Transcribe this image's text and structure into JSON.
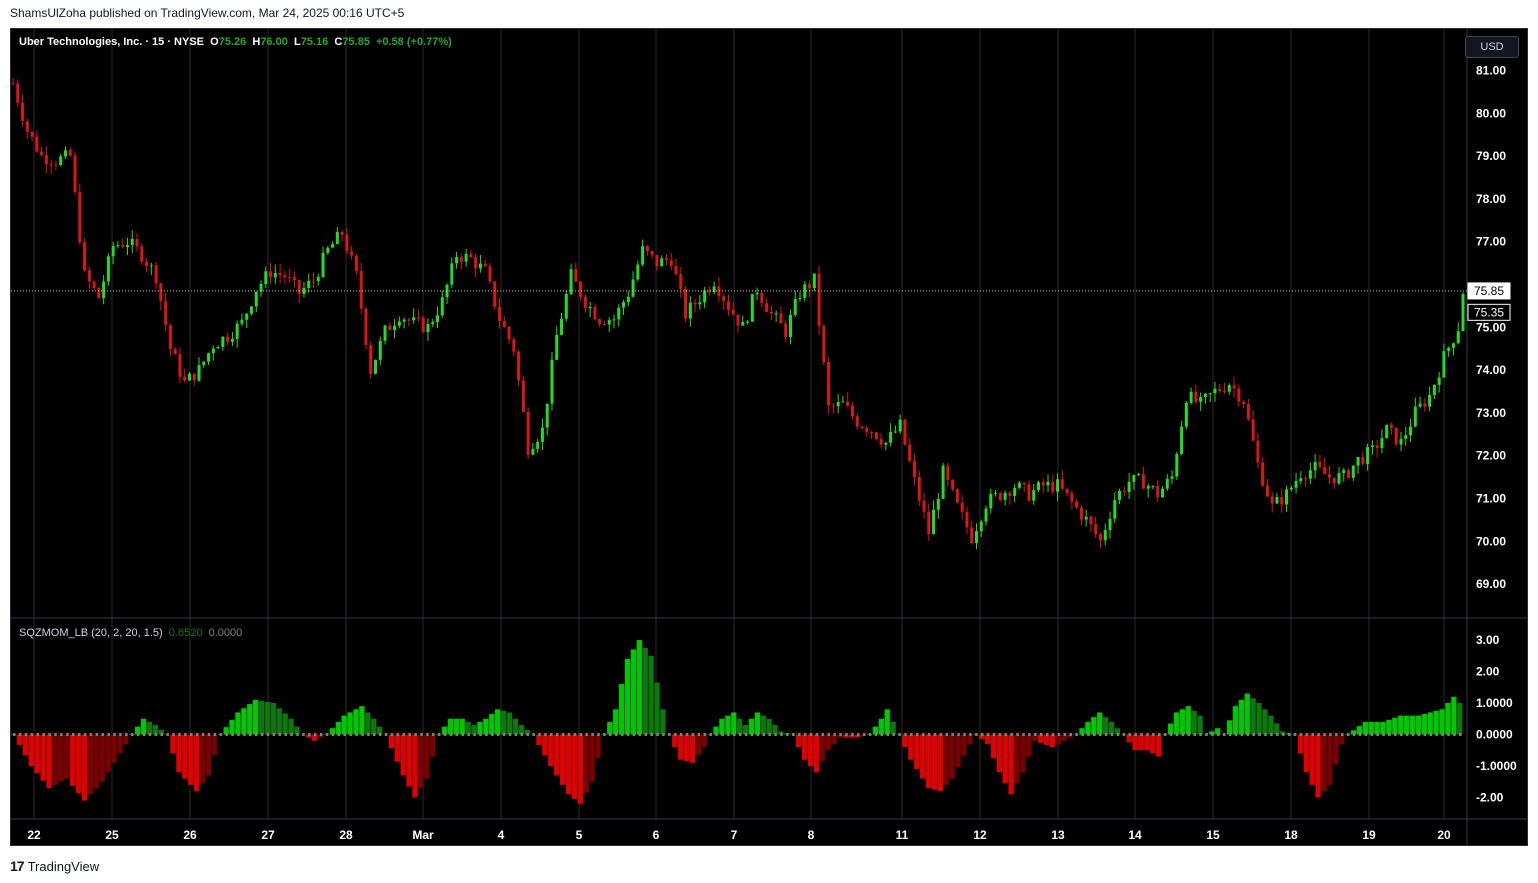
{
  "header": {
    "publisher": "ShamsUlZoha published on TradingView.com, Mar 24, 2025 00:16 UTC+5"
  },
  "footer": {
    "brand": "TradingView",
    "logo_text": "17"
  },
  "currency_button": "USD",
  "legend": {
    "symbol": "Uber Technologies, Inc. · 15 · NYSE",
    "o_label": "O",
    "o_value": "75.26",
    "h_label": "H",
    "h_value": "76.00",
    "l_label": "L",
    "l_value": "75.16",
    "c_label": "C",
    "c_value": "75.85",
    "change": "+0.58 (+0.77%)"
  },
  "indicator": {
    "name": "SQZMOM_LB (20, 2, 20, 1.5)",
    "value1": "0.6520",
    "value2": "0.0000"
  },
  "colors": {
    "up": "#22dd22",
    "down": "#dd1515",
    "grid": "#2b2b2b",
    "axis_text": "#ffffff",
    "mom_up_strong": "#00c800",
    "mom_up_weak": "#0b7a0b",
    "mom_dn_strong": "#e00000",
    "mom_dn_weak": "#7a0000",
    "sqz_dot": "#808080"
  },
  "chart_data": [
    {
      "type": "candlestick",
      "title": "Uber Technologies, Inc. · 15 · NYSE",
      "ylim": [
        68.3,
        82.0
      ],
      "yticks": [
        "81.00",
        "80.00",
        "79.00",
        "78.00",
        "77.00",
        "75.00",
        "74.00",
        "73.00",
        "72.00",
        "71.00",
        "70.00",
        "69.00"
      ],
      "price_labels": [
        "75.85",
        "75.35"
      ],
      "last_price": 75.85,
      "x_ticks": [
        "22",
        "25",
        "26",
        "27",
        "28",
        "Mar",
        "4",
        "5",
        "6",
        "7",
        "8",
        "11",
        "12",
        "13",
        "14",
        "15",
        "18",
        "19",
        "20"
      ],
      "close_path": [
        [
          0,
          80.7
        ],
        [
          3,
          79.6
        ],
        [
          6,
          79.0
        ],
        [
          9,
          78.9
        ],
        [
          12,
          79.0
        ],
        [
          15,
          76.2
        ],
        [
          18,
          75.7
        ],
        [
          21,
          76.9
        ],
        [
          24,
          77.0
        ],
        [
          27,
          76.7
        ],
        [
          30,
          76.2
        ],
        [
          33,
          74.5
        ],
        [
          36,
          73.7
        ],
        [
          39,
          74.0
        ],
        [
          42,
          74.6
        ],
        [
          45,
          74.8
        ],
        [
          48,
          75.1
        ],
        [
          51,
          75.9
        ],
        [
          54,
          76.3
        ],
        [
          57,
          76.2
        ],
        [
          60,
          75.8
        ],
        [
          63,
          76.1
        ],
        [
          66,
          76.8
        ],
        [
          69,
          77.2
        ],
        [
          72,
          76.2
        ],
        [
          75,
          74.0
        ],
        [
          78,
          74.9
        ],
        [
          81,
          75.3
        ],
        [
          84,
          75.1
        ],
        [
          87,
          75.0
        ],
        [
          90,
          75.6
        ],
        [
          93,
          76.7
        ],
        [
          96,
          76.6
        ],
        [
          99,
          76.3
        ],
        [
          102,
          75.2
        ],
        [
          105,
          74.5
        ],
        [
          108,
          72.2
        ],
        [
          111,
          72.6
        ],
        [
          114,
          74.8
        ],
        [
          117,
          76.2
        ],
        [
          120,
          75.6
        ],
        [
          123,
          75.2
        ],
        [
          126,
          75.2
        ],
        [
          129,
          75.8
        ],
        [
          132,
          76.8
        ],
        [
          135,
          76.5
        ],
        [
          138,
          76.6
        ],
        [
          141,
          75.3
        ],
        [
          144,
          75.7
        ],
        [
          147,
          76.1
        ],
        [
          150,
          75.5
        ],
        [
          153,
          75.0
        ],
        [
          156,
          75.9
        ],
        [
          159,
          75.3
        ],
        [
          162,
          74.9
        ],
        [
          165,
          75.8
        ],
        [
          168,
          76.1
        ],
        [
          171,
          73.1
        ],
        [
          174,
          73.2
        ],
        [
          177,
          72.8
        ],
        [
          180,
          72.6
        ],
        [
          183,
          72.3
        ],
        [
          186,
          72.7
        ],
        [
          189,
          71.4
        ],
        [
          192,
          70.2
        ],
        [
          195,
          71.6
        ],
        [
          198,
          70.8
        ],
        [
          201,
          70.1
        ],
        [
          204,
          70.9
        ],
        [
          207,
          71.1
        ],
        [
          210,
          71.3
        ],
        [
          213,
          71.1
        ],
        [
          216,
          71.3
        ],
        [
          219,
          71.3
        ],
        [
          222,
          70.9
        ],
        [
          225,
          70.5
        ],
        [
          228,
          70.0
        ],
        [
          231,
          71.0
        ],
        [
          234,
          71.4
        ],
        [
          237,
          71.4
        ],
        [
          240,
          71.1
        ],
        [
          243,
          71.5
        ],
        [
          246,
          73.4
        ],
        [
          249,
          73.2
        ],
        [
          252,
          73.5
        ],
        [
          255,
          73.7
        ],
        [
          258,
          73.3
        ],
        [
          261,
          71.8
        ],
        [
          264,
          70.8
        ],
        [
          267,
          71.1
        ],
        [
          270,
          71.6
        ],
        [
          273,
          71.7
        ],
        [
          276,
          71.5
        ],
        [
          279,
          71.5
        ],
        [
          282,
          71.9
        ],
        [
          285,
          72.1
        ],
        [
          288,
          72.6
        ],
        [
          291,
          72.3
        ],
        [
          294,
          73.0
        ],
        [
          297,
          73.4
        ],
        [
          300,
          74.3
        ],
        [
          303,
          75.0
        ],
        [
          304,
          75.85
        ]
      ]
    },
    {
      "type": "bar",
      "title": "SQZMOM_LB (20, 2, 20, 1.5)",
      "ylim": [
        -2.7,
        3.3
      ],
      "yticks": [
        "3.00",
        "2.00",
        "1.0000",
        "0.0000",
        "-1.0000",
        "-2.00"
      ],
      "momentum_path": [
        [
          0,
          0.0
        ],
        [
          3,
          -1.0
        ],
        [
          6,
          -1.7
        ],
        [
          9,
          -1.4
        ],
        [
          12,
          -2.1
        ],
        [
          15,
          -1.5
        ],
        [
          18,
          -0.6
        ],
        [
          20,
          0.0
        ],
        [
          22,
          0.5
        ],
        [
          24,
          0.3
        ],
        [
          26,
          0.0
        ],
        [
          28,
          -1.2
        ],
        [
          31,
          -1.8
        ],
        [
          33,
          -1.3
        ],
        [
          35,
          0.0
        ],
        [
          38,
          0.7
        ],
        [
          41,
          1.1
        ],
        [
          44,
          1.0
        ],
        [
          47,
          0.5
        ],
        [
          49,
          0.0
        ],
        [
          51,
          -0.2
        ],
        [
          53,
          0.0
        ],
        [
          56,
          0.6
        ],
        [
          59,
          0.9
        ],
        [
          61,
          0.5
        ],
        [
          63,
          0.0
        ],
        [
          66,
          -1.3
        ],
        [
          68,
          -2.0
        ],
        [
          70,
          -1.4
        ],
        [
          72,
          0.0
        ],
        [
          74,
          0.5
        ],
        [
          76,
          0.5
        ],
        [
          78,
          0.3
        ],
        [
          80,
          0.5
        ],
        [
          82,
          0.8
        ],
        [
          84,
          0.7
        ],
        [
          86,
          0.3
        ],
        [
          88,
          0.0
        ],
        [
          91,
          -1.0
        ],
        [
          94,
          -1.9
        ],
        [
          96,
          -2.2
        ],
        [
          98,
          -1.5
        ],
        [
          100,
          0.0
        ],
        [
          102,
          0.8
        ],
        [
          104,
          2.4
        ],
        [
          106,
          3.0
        ],
        [
          108,
          2.5
        ],
        [
          110,
          0.8
        ],
        [
          111,
          0.0
        ],
        [
          113,
          -0.8
        ],
        [
          115,
          -0.9
        ],
        [
          117,
          -0.4
        ],
        [
          118,
          0.0
        ],
        [
          120,
          0.5
        ],
        [
          122,
          0.7
        ],
        [
          124,
          0.3
        ],
        [
          126,
          0.7
        ],
        [
          128,
          0.5
        ],
        [
          130,
          0.1
        ],
        [
          132,
          0.0
        ],
        [
          134,
          -0.8
        ],
        [
          136,
          -1.2
        ],
        [
          138,
          -0.5
        ],
        [
          140,
          -0.1
        ],
        [
          143,
          -0.1
        ],
        [
          145,
          0.0
        ],
        [
          147,
          0.5
        ],
        [
          148,
          0.8
        ],
        [
          150,
          0.0
        ],
        [
          152,
          -0.8
        ],
        [
          155,
          -1.7
        ],
        [
          157,
          -1.8
        ],
        [
          159,
          -1.4
        ],
        [
          162,
          -0.3
        ],
        [
          163,
          0.0
        ],
        [
          165,
          -0.3
        ],
        [
          167,
          -1.2
        ],
        [
          169,
          -1.9
        ],
        [
          171,
          -1.2
        ],
        [
          173,
          -0.2
        ],
        [
          176,
          -0.4
        ],
        [
          178,
          -0.2
        ],
        [
          180,
          0.0
        ],
        [
          182,
          0.4
        ],
        [
          184,
          0.7
        ],
        [
          186,
          0.4
        ],
        [
          188,
          0.0
        ],
        [
          190,
          -0.5
        ],
        [
          192,
          -0.5
        ],
        [
          194,
          -0.7
        ],
        [
          195,
          0.0
        ],
        [
          197,
          0.7
        ],
        [
          199,
          0.9
        ],
        [
          201,
          0.6
        ],
        [
          202,
          0.0
        ],
        [
          204,
          0.2
        ],
        [
          205,
          0.0
        ],
        [
          207,
          0.9
        ],
        [
          209,
          1.3
        ],
        [
          211,
          1.0
        ],
        [
          213,
          0.6
        ],
        [
          215,
          0.1
        ],
        [
          217,
          0.0
        ],
        [
          219,
          -1.2
        ],
        [
          221,
          -2.0
        ],
        [
          223,
          -1.6
        ],
        [
          225,
          -0.3
        ],
        [
          226,
          0.0
        ],
        [
          229,
          0.4
        ],
        [
          232,
          0.4
        ],
        [
          235,
          0.6
        ],
        [
          238,
          0.6
        ],
        [
          240,
          0.7
        ],
        [
          242,
          0.8
        ],
        [
          244,
          1.2
        ],
        [
          245,
          1.0
        ]
      ]
    }
  ]
}
